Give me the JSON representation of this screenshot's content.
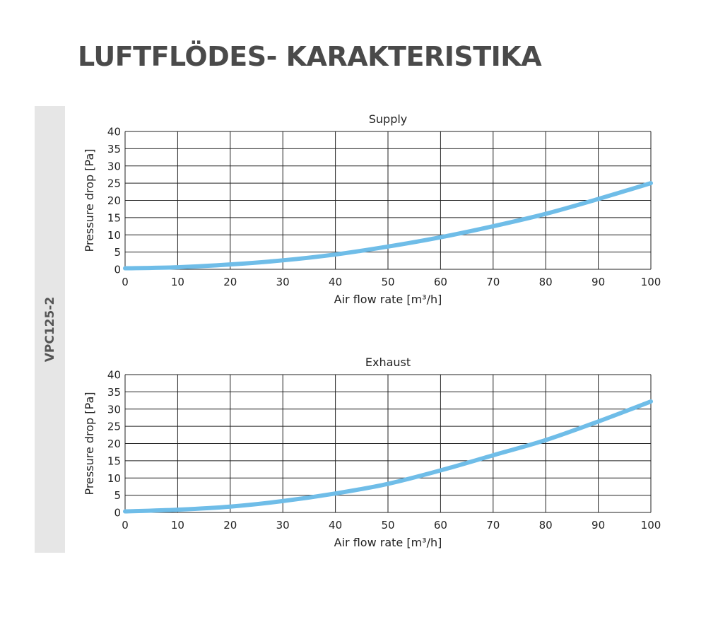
{
  "page": {
    "title": "LUFTFLÖDES- KARAKTERISTIKA",
    "model": "VPC125-2"
  },
  "chart_data": [
    {
      "type": "line",
      "title": "Supply",
      "xlabel": "Air flow rate [m³/h]",
      "ylabel": "Pressure drop [Pa]",
      "xlim": [
        0,
        100
      ],
      "ylim": [
        0,
        40
      ],
      "xticks": [
        0,
        10,
        20,
        30,
        40,
        50,
        60,
        70,
        80,
        90,
        100
      ],
      "yticks": [
        0,
        5,
        10,
        15,
        20,
        25,
        30,
        35,
        40
      ],
      "grid": true,
      "line_color": "#6fbde8",
      "series": [
        {
          "x": [
            0,
            10,
            20,
            30,
            40,
            50,
            60,
            70,
            80,
            90,
            100
          ],
          "values": [
            0.3,
            0.6,
            1.4,
            2.6,
            4.3,
            6.6,
            9.3,
            12.5,
            16.1,
            20.4,
            25.0
          ]
        }
      ]
    },
    {
      "type": "line",
      "title": "Exhaust",
      "xlabel": "Air flow rate [m³/h]",
      "ylabel": "Pressure drop [Pa]",
      "xlim": [
        0,
        100
      ],
      "ylim": [
        0,
        40
      ],
      "xticks": [
        0,
        10,
        20,
        30,
        40,
        50,
        60,
        70,
        80,
        90,
        100
      ],
      "yticks": [
        0,
        5,
        10,
        15,
        20,
        25,
        30,
        35,
        40
      ],
      "grid": true,
      "line_color": "#6fbde8",
      "series": [
        {
          "x": [
            0,
            10,
            20,
            30,
            40,
            50,
            60,
            70,
            80,
            90,
            100
          ],
          "values": [
            0.3,
            0.8,
            1.7,
            3.3,
            5.5,
            8.3,
            12.2,
            16.6,
            21.0,
            26.4,
            32.2
          ]
        }
      ]
    }
  ]
}
